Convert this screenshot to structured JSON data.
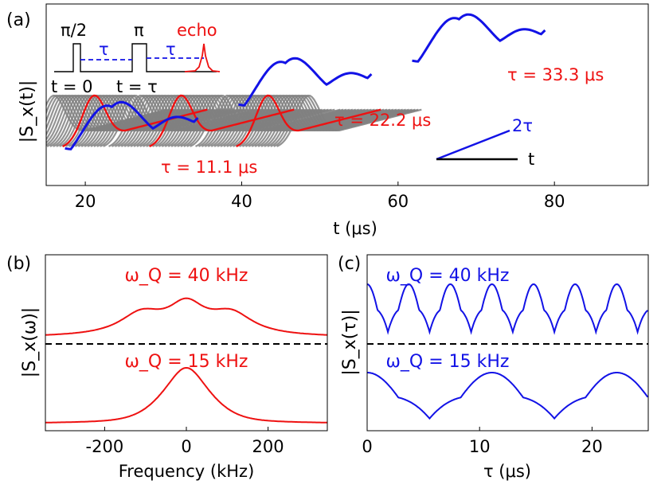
{
  "chart_data": [
    {
      "panel": "(a)",
      "type": "line",
      "xlabel": "t (μs)",
      "ylabel": "|S_x(t)|",
      "xlim": [
        15,
        92
      ],
      "xticks": [
        "20",
        "40",
        "60",
        "80"
      ],
      "colors": {
        "envelope": "#1212e6",
        "echo": "#ee1111",
        "traces": "#808080",
        "inset": "#000000"
      },
      "series": [
        {
          "name": "τ = 11.1 μs",
          "tau": 11.1,
          "echo_peak_t": 22.2
        },
        {
          "name": "τ = 22.2 μs",
          "tau": 22.2,
          "echo_peak_t": 44.4
        },
        {
          "name": "τ = 33.3 μs",
          "tau": 33.3,
          "echo_peak_t": 66.6
        }
      ],
      "annotations": {
        "pulse_90": "π/2",
        "pulse_180": "π",
        "echo": "echo",
        "tau1": "τ",
        "tau2": "τ",
        "t0": "t = 0",
        "ttau": "t = τ",
        "slope_fast": "2τ",
        "slope_slow": "t"
      }
    },
    {
      "panel": "(b)",
      "type": "line",
      "xlabel": "Frequency (kHz)",
      "ylabel": "|S_x(ω)|",
      "xlim": [
        -345,
        345
      ],
      "xticks": [
        "-200",
        "0",
        "200"
      ],
      "color": "#ee1111",
      "series": [
        {
          "name": "ω_Q = 40 kHz",
          "omegaQ_kHz": 40
        },
        {
          "name": "ω_Q = 15 kHz",
          "omegaQ_kHz": 15
        }
      ]
    },
    {
      "panel": "(c)",
      "type": "line",
      "xlabel": "τ (μs)",
      "ylabel": "|S_x(τ)|",
      "xlim": [
        0,
        25
      ],
      "xticks": [
        "0",
        "10",
        "20"
      ],
      "color": "#1212e6",
      "series": [
        {
          "name": "ω_Q = 40 kHz",
          "omegaQ_kHz": 40,
          "period_us": 3.7
        },
        {
          "name": "ω_Q = 15 kHz",
          "omegaQ_kHz": 15,
          "period_us": 11.1
        }
      ]
    }
  ]
}
